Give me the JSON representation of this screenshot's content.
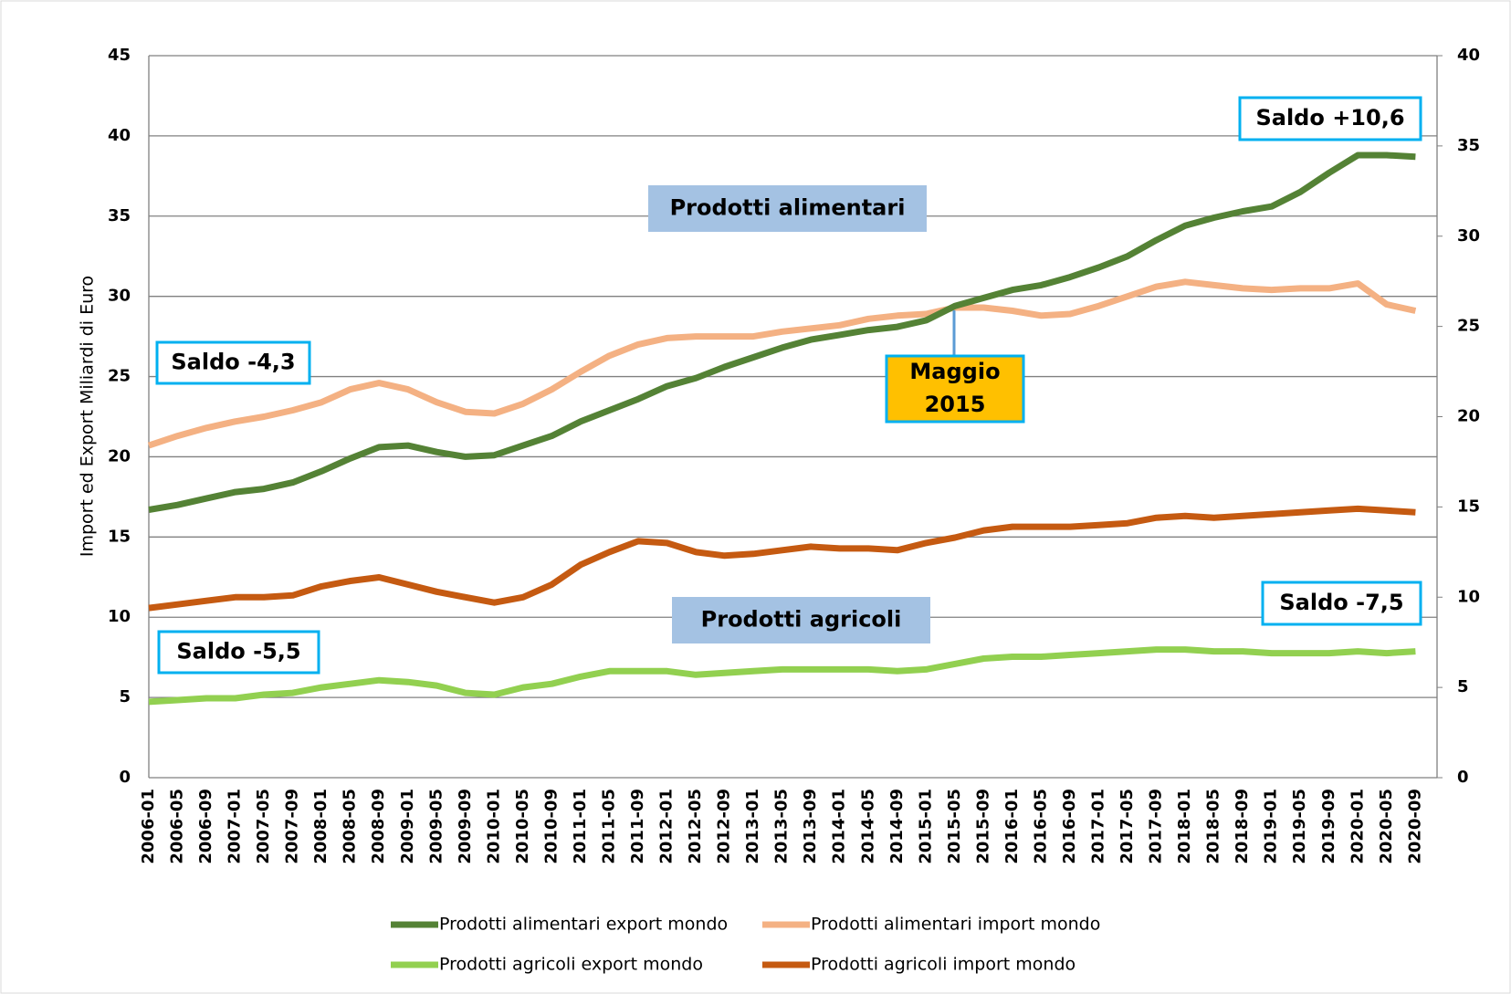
{
  "chart_data": {
    "type": "line",
    "y_axis_label": "Import ed Export Miliardi di Euro",
    "categories": [
      "2006-01",
      "2006-05",
      "2006-09",
      "2007-01",
      "2007-05",
      "2007-09",
      "2008-01",
      "2008-05",
      "2008-09",
      "2009-01",
      "2009-05",
      "2009-09",
      "2010-01",
      "2010-05",
      "2010-09",
      "2011-01",
      "2011-05",
      "2011-09",
      "2012-01",
      "2012-05",
      "2012-09",
      "2013-01",
      "2013-05",
      "2013-09",
      "2014-01",
      "2014-05",
      "2014-09",
      "2015-01",
      "2015-05",
      "2015-09",
      "2016-01",
      "2016-05",
      "2016-09",
      "2017-01",
      "2017-05",
      "2017-09",
      "2018-01",
      "2018-05",
      "2018-09",
      "2019-01",
      "2019-05",
      "2019-09",
      "2020-01",
      "2020-05",
      "2020-09"
    ],
    "series": [
      {
        "name": "Prodotti alimentari export mondo",
        "color": "#548235",
        "values": [
          16.7,
          17.0,
          17.4,
          17.8,
          18.0,
          18.4,
          19.1,
          19.9,
          20.6,
          20.7,
          20.3,
          20.0,
          20.1,
          20.7,
          21.3,
          22.2,
          22.9,
          23.6,
          24.4,
          24.9,
          25.6,
          26.2,
          26.8,
          27.3,
          27.6,
          27.9,
          28.1,
          28.5,
          29.4,
          29.9,
          30.4,
          30.7,
          31.2,
          31.8,
          32.5,
          33.5,
          34.4,
          34.9,
          35.3,
          35.6,
          36.5,
          37.7,
          38.8,
          38.8,
          38.7
        ]
      },
      {
        "name": "Prodotti alimentari import mondo",
        "color": "#f4b183",
        "values": [
          20.7,
          21.3,
          21.8,
          22.2,
          22.5,
          22.9,
          23.4,
          24.2,
          24.6,
          24.2,
          23.4,
          22.8,
          22.7,
          23.3,
          24.2,
          25.3,
          26.3,
          27.0,
          27.4,
          27.5,
          27.5,
          27.5,
          27.8,
          28.0,
          28.2,
          28.6,
          28.8,
          28.9,
          29.3,
          29.3,
          29.1,
          28.8,
          28.9,
          29.4,
          30.0,
          30.6,
          30.9,
          30.7,
          30.5,
          30.4,
          30.5,
          30.5,
          30.8,
          29.5,
          29.1
        ]
      },
      {
        "name": "Prodotti agricoli export mondo",
        "color": "#92d050",
        "axis": "y2",
        "values": [
          4.2,
          4.3,
          4.4,
          4.4,
          4.6,
          4.7,
          5.0,
          5.2,
          5.4,
          5.3,
          5.1,
          4.7,
          4.6,
          5.0,
          5.2,
          5.6,
          5.9,
          5.9,
          5.9,
          5.7,
          5.8,
          5.9,
          6.0,
          6.0,
          6.0,
          6.0,
          5.9,
          6.0,
          6.3,
          6.6,
          6.7,
          6.7,
          6.8,
          6.9,
          7.0,
          7.1,
          7.1,
          7.0,
          7.0,
          6.9,
          6.9,
          6.9,
          7.0,
          6.9,
          7.0
        ]
      },
      {
        "name": "Prodotti agricoli import mondo",
        "color": "#c55a11",
        "axis": "y2",
        "values": [
          9.4,
          9.6,
          9.8,
          10.0,
          10.0,
          10.1,
          10.6,
          10.9,
          11.1,
          10.7,
          10.3,
          10.0,
          9.7,
          10.0,
          10.7,
          11.8,
          12.5,
          13.1,
          13.0,
          12.5,
          12.3,
          12.4,
          12.6,
          12.8,
          12.7,
          12.7,
          12.6,
          13.0,
          13.3,
          13.7,
          13.9,
          13.9,
          13.9,
          14.0,
          14.1,
          14.4,
          14.5,
          14.4,
          14.5,
          14.6,
          14.7,
          14.8,
          14.9,
          14.8,
          14.7
        ]
      }
    ],
    "ylim": [
      0,
      45
    ],
    "yticks": [
      0,
      5,
      10,
      15,
      20,
      25,
      30,
      35,
      40,
      45
    ],
    "y2lim": [
      0,
      40
    ],
    "y2ticks": [
      0,
      5,
      10,
      15,
      20,
      25,
      30,
      35,
      40
    ],
    "grid": true,
    "annotations": [
      {
        "text": [
          "Prodotti alimentari"
        ]
      },
      {
        "text": [
          "Prodotti agricoli"
        ]
      },
      {
        "text": [
          "Saldo -4,3"
        ]
      },
      {
        "text": [
          "Saldo +10,6"
        ]
      },
      {
        "text": [
          "Saldo -5,5"
        ]
      },
      {
        "text": [
          "Saldo -7,5"
        ]
      },
      {
        "text": [
          "Maggio",
          "2015"
        ]
      }
    ]
  }
}
